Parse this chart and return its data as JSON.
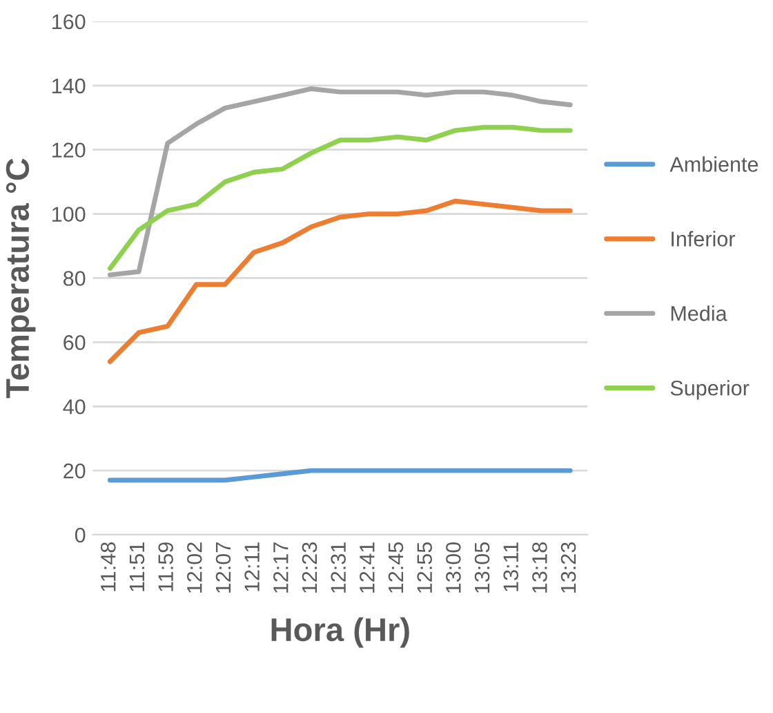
{
  "chart_data": {
    "type": "line",
    "xlabel": "Hora (Hr)",
    "ylabel": "Temperatura °C",
    "categories": [
      "11:48",
      "11:51",
      "11:59",
      "12:02",
      "12:07",
      "12:11",
      "12:17",
      "12:23",
      "12:31",
      "12:41",
      "12:45",
      "12:55",
      "13:00",
      "13:05",
      "13:11",
      "13:18",
      "13:23"
    ],
    "series": [
      {
        "name": "Ambiente",
        "color": "#5b9bd5",
        "values": [
          17,
          17,
          17,
          17,
          17,
          18,
          19,
          20,
          20,
          20,
          20,
          20,
          20,
          20,
          20,
          20,
          20
        ]
      },
      {
        "name": "Inferior",
        "color": "#ed7d31",
        "values": [
          54,
          63,
          65,
          78,
          78,
          88,
          91,
          96,
          99,
          100,
          100,
          101,
          104,
          103,
          102,
          101,
          101
        ]
      },
      {
        "name": "Media",
        "color": "#a5a5a5",
        "values": [
          81,
          82,
          122,
          128,
          133,
          135,
          137,
          139,
          138,
          138,
          138,
          137,
          138,
          138,
          137,
          135,
          134
        ]
      },
      {
        "name": "Superior",
        "color": "#8fd14f",
        "values": [
          83,
          95,
          101,
          103,
          110,
          113,
          114,
          119,
          123,
          123,
          124,
          123,
          126,
          127,
          127,
          126,
          126
        ]
      }
    ],
    "ylim": [
      0,
      160
    ],
    "yticks": [
      0,
      20,
      40,
      60,
      80,
      100,
      120,
      140,
      160
    ],
    "grid": "y",
    "legend": "right",
    "marker": "none",
    "line_style": "solid"
  }
}
